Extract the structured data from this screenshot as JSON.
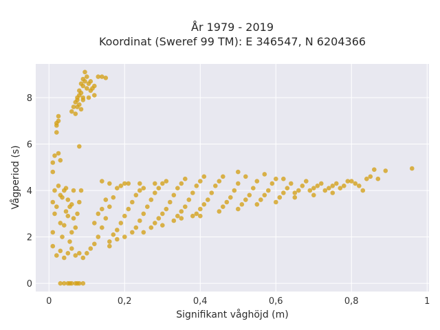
{
  "chart_data": {
    "type": "scatter",
    "title_lines": [
      "År 1979 - 2019",
      "Koordinat (Sweref 99 TM): E 346547, N 6204366"
    ],
    "xlabel": "Signifikant våghöjd (m)",
    "ylabel": "Vågperiod (s)",
    "xlim": [
      -0.035,
      1.005
    ],
    "ylim": [
      -0.35,
      9.45
    ],
    "x_ticks": [
      0,
      0.2,
      0.4,
      0.6,
      0.8,
      1
    ],
    "x_tick_labels": [
      "0",
      "0,2",
      "0,4",
      "0,6",
      "0,8",
      "1"
    ],
    "y_ticks": [
      0,
      2,
      4,
      6,
      8
    ],
    "y_tick_labels": [
      "0",
      "2",
      "4",
      "6",
      "8"
    ],
    "grid": true,
    "marker_color": "#d4a017",
    "background_color": "#e8e8f0",
    "series": [
      {
        "points": [
          [
            0.01,
            1.6
          ],
          [
            0.01,
            2.2
          ],
          [
            0.015,
            3.0
          ],
          [
            0.01,
            3.5
          ],
          [
            0.015,
            4.0
          ],
          [
            0.01,
            5.2
          ],
          [
            0.015,
            5.5
          ],
          [
            0.01,
            4.8
          ],
          [
            0.02,
            1.2
          ],
          [
            0.02,
            3.3
          ],
          [
            0.02,
            6.5
          ],
          [
            0.02,
            6.8
          ],
          [
            0.025,
            7.0
          ],
          [
            0.025,
            7.2
          ],
          [
            0.02,
            6.9
          ],
          [
            0.025,
            4.2
          ],
          [
            0.03,
            3.8
          ],
          [
            0.03,
            5.3
          ],
          [
            0.025,
            5.6
          ],
          [
            0.03,
            1.4
          ],
          [
            0.035,
            2.0
          ],
          [
            0.04,
            2.5
          ],
          [
            0.045,
            3.1
          ],
          [
            0.05,
            3.6
          ],
          [
            0.045,
            4.1
          ],
          [
            0.04,
            1.1
          ],
          [
            0.05,
            1.3
          ],
          [
            0.055,
            1.8
          ],
          [
            0.06,
            2.2
          ],
          [
            0.065,
            2.8
          ],
          [
            0.06,
            3.4
          ],
          [
            0.065,
            4.0
          ],
          [
            0.06,
            7.4
          ],
          [
            0.065,
            7.6
          ],
          [
            0.07,
            7.8
          ],
          [
            0.07,
            7.3
          ],
          [
            0.075,
            8.0
          ],
          [
            0.075,
            7.9
          ],
          [
            0.08,
            8.1
          ],
          [
            0.08,
            8.3
          ],
          [
            0.085,
            8.2
          ],
          [
            0.085,
            8.6
          ],
          [
            0.09,
            8.5
          ],
          [
            0.09,
            8.8
          ],
          [
            0.095,
            8.7
          ],
          [
            0.095,
            9.1
          ],
          [
            0.1,
            8.4
          ],
          [
            0.1,
            8.9
          ],
          [
            0.105,
            8.6
          ],
          [
            0.11,
            8.7
          ],
          [
            0.11,
            8.3
          ],
          [
            0.115,
            8.4
          ],
          [
            0.12,
            8.5
          ],
          [
            0.13,
            8.9
          ],
          [
            0.14,
            8.9
          ],
          [
            0.15,
            8.85
          ],
          [
            0.12,
            8.1
          ],
          [
            0.105,
            8.0
          ],
          [
            0.09,
            7.9
          ],
          [
            0.075,
            7.6
          ],
          [
            0.08,
            7.7
          ],
          [
            0.085,
            7.5
          ],
          [
            0.09,
            8.0
          ],
          [
            0.08,
            5.9
          ],
          [
            0.07,
            2.4
          ],
          [
            0.075,
            3.0
          ],
          [
            0.08,
            3.5
          ],
          [
            0.085,
            4.0
          ],
          [
            0.09,
            1.1
          ],
          [
            0.1,
            1.3
          ],
          [
            0.11,
            1.5
          ],
          [
            0.12,
            1.7
          ],
          [
            0.13,
            2.0
          ],
          [
            0.14,
            2.4
          ],
          [
            0.15,
            2.8
          ],
          [
            0.16,
            3.3
          ],
          [
            0.17,
            3.7
          ],
          [
            0.18,
            4.1
          ],
          [
            0.19,
            4.2
          ],
          [
            0.2,
            4.3
          ],
          [
            0.12,
            2.6
          ],
          [
            0.13,
            3.0
          ],
          [
            0.14,
            3.2
          ],
          [
            0.15,
            3.6
          ],
          [
            0.16,
            1.8
          ],
          [
            0.17,
            2.1
          ],
          [
            0.18,
            2.3
          ],
          [
            0.19,
            2.6
          ],
          [
            0.2,
            2.9
          ],
          [
            0.21,
            3.2
          ],
          [
            0.22,
            3.5
          ],
          [
            0.23,
            3.8
          ],
          [
            0.24,
            4.0
          ],
          [
            0.25,
            4.1
          ],
          [
            0.22,
            2.2
          ],
          [
            0.23,
            2.4
          ],
          [
            0.24,
            2.7
          ],
          [
            0.25,
            3.0
          ],
          [
            0.26,
            3.3
          ],
          [
            0.27,
            3.6
          ],
          [
            0.28,
            3.9
          ],
          [
            0.29,
            4.1
          ],
          [
            0.3,
            4.3
          ],
          [
            0.27,
            2.4
          ],
          [
            0.28,
            2.6
          ],
          [
            0.29,
            2.8
          ],
          [
            0.3,
            3.0
          ],
          [
            0.31,
            3.2
          ],
          [
            0.32,
            3.5
          ],
          [
            0.33,
            3.8
          ],
          [
            0.34,
            4.1
          ],
          [
            0.35,
            4.3
          ],
          [
            0.33,
            2.7
          ],
          [
            0.34,
            2.9
          ],
          [
            0.35,
            3.1
          ],
          [
            0.36,
            3.3
          ],
          [
            0.37,
            3.6
          ],
          [
            0.38,
            3.9
          ],
          [
            0.39,
            4.2
          ],
          [
            0.4,
            4.4
          ],
          [
            0.38,
            2.9
          ],
          [
            0.39,
            3.0
          ],
          [
            0.4,
            3.2
          ],
          [
            0.41,
            3.4
          ],
          [
            0.42,
            3.6
          ],
          [
            0.43,
            3.9
          ],
          [
            0.44,
            4.2
          ],
          [
            0.45,
            4.4
          ],
          [
            0.46,
            3.3
          ],
          [
            0.47,
            3.5
          ],
          [
            0.48,
            3.7
          ],
          [
            0.49,
            4.0
          ],
          [
            0.5,
            4.3
          ],
          [
            0.5,
            4.8
          ],
          [
            0.51,
            3.4
          ],
          [
            0.52,
            3.6
          ],
          [
            0.53,
            3.8
          ],
          [
            0.54,
            4.1
          ],
          [
            0.55,
            4.4
          ],
          [
            0.56,
            3.6
          ],
          [
            0.57,
            3.8
          ],
          [
            0.58,
            4.0
          ],
          [
            0.59,
            4.3
          ],
          [
            0.6,
            4.5
          ],
          [
            0.61,
            3.7
          ],
          [
            0.62,
            3.9
          ],
          [
            0.63,
            4.1
          ],
          [
            0.64,
            4.3
          ],
          [
            0.65,
            3.9
          ],
          [
            0.66,
            4.0
          ],
          [
            0.67,
            4.2
          ],
          [
            0.68,
            4.4
          ],
          [
            0.69,
            4.0
          ],
          [
            0.7,
            4.1
          ],
          [
            0.71,
            4.2
          ],
          [
            0.72,
            4.3
          ],
          [
            0.73,
            4.0
          ],
          [
            0.74,
            4.1
          ],
          [
            0.75,
            4.2
          ],
          [
            0.76,
            4.3
          ],
          [
            0.77,
            4.1
          ],
          [
            0.78,
            4.2
          ],
          [
            0.79,
            4.4
          ],
          [
            0.8,
            4.4
          ],
          [
            0.81,
            4.3
          ],
          [
            0.82,
            4.2
          ],
          [
            0.83,
            4.0
          ],
          [
            0.84,
            4.5
          ],
          [
            0.85,
            4.6
          ],
          [
            0.86,
            4.9
          ],
          [
            0.87,
            4.5
          ],
          [
            0.89,
            4.85
          ],
          [
            0.96,
            4.95
          ],
          [
            0.04,
            0.0
          ],
          [
            0.05,
            0.0
          ],
          [
            0.06,
            0.0
          ],
          [
            0.07,
            0.0
          ],
          [
            0.08,
            0.0
          ],
          [
            0.09,
            0.0
          ],
          [
            0.03,
            0.0
          ],
          [
            0.055,
            0.0
          ],
          [
            0.075,
            0.0
          ],
          [
            0.03,
            2.6
          ],
          [
            0.035,
            3.7
          ],
          [
            0.04,
            4.0
          ],
          [
            0.05,
            2.9
          ],
          [
            0.055,
            3.3
          ],
          [
            0.06,
            1.5
          ],
          [
            0.07,
            1.2
          ],
          [
            0.08,
            1.3
          ],
          [
            0.14,
            4.4
          ],
          [
            0.16,
            4.3
          ],
          [
            0.21,
            4.3
          ],
          [
            0.24,
            4.3
          ],
          [
            0.28,
            4.3
          ],
          [
            0.31,
            4.4
          ],
          [
            0.36,
            4.5
          ],
          [
            0.41,
            4.6
          ],
          [
            0.46,
            4.6
          ],
          [
            0.52,
            4.6
          ],
          [
            0.57,
            4.7
          ],
          [
            0.62,
            4.5
          ],
          [
            0.16,
            1.6
          ],
          [
            0.18,
            1.9
          ],
          [
            0.2,
            2.0
          ],
          [
            0.25,
            2.2
          ],
          [
            0.3,
            2.5
          ],
          [
            0.35,
            2.8
          ],
          [
            0.4,
            2.9
          ],
          [
            0.45,
            3.1
          ],
          [
            0.5,
            3.2
          ],
          [
            0.55,
            3.4
          ],
          [
            0.6,
            3.5
          ],
          [
            0.65,
            3.7
          ],
          [
            0.7,
            3.8
          ],
          [
            0.75,
            3.9
          ]
        ]
      }
    ]
  }
}
